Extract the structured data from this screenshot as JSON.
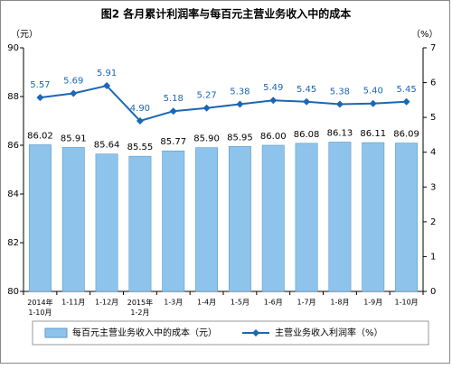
{
  "chart_data": {
    "type": "bar",
    "title": "图2  各月累计利润率与每百元主营业务收入中的成本",
    "y_label": "（元）",
    "y2_label": "（%）",
    "categories": [
      "2014年\n1-10月",
      "1-11月",
      "1-12月",
      "2015年\n1-2月",
      "1-3月",
      "1-4月",
      "1-5月",
      "1-6月",
      "1-7月",
      "1-8月",
      "1-9月",
      "1-10月"
    ],
    "series": [
      {
        "name": "每百元主营业务收入中的成本（元）",
        "type": "bar",
        "color": "#8ec4ec",
        "values": [
          86.02,
          85.91,
          85.64,
          85.55,
          85.77,
          85.9,
          85.95,
          86.0,
          86.08,
          86.13,
          86.11,
          86.09
        ],
        "value_labels": [
          "86.02",
          "85.91",
          "85.64",
          "85.55",
          "85.77",
          "85.90",
          "85.95",
          "86.00",
          "86.08",
          "86.13",
          "86.11",
          "86.09"
        ]
      },
      {
        "name": "主营业务收入利润率（%）",
        "type": "line",
        "axis": "y2",
        "color": "#1b67b5",
        "values": [
          5.57,
          5.69,
          5.91,
          4.9,
          5.18,
          5.27,
          5.38,
          5.49,
          5.45,
          5.38,
          5.4,
          5.45
        ],
        "value_labels": [
          "5.57",
          "5.69",
          "5.91",
          "4.90",
          "5.18",
          "5.27",
          "5.38",
          "5.49",
          "5.45",
          "5.38",
          "5.40",
          "5.45"
        ]
      }
    ],
    "ylim": [
      80,
      90
    ],
    "yticks": [
      80,
      82,
      84,
      86,
      88,
      90
    ],
    "y2lim": [
      0,
      7
    ],
    "y2ticks": [
      0,
      1,
      2,
      3,
      4,
      5,
      6,
      7
    ],
    "legend": "bottom"
  }
}
